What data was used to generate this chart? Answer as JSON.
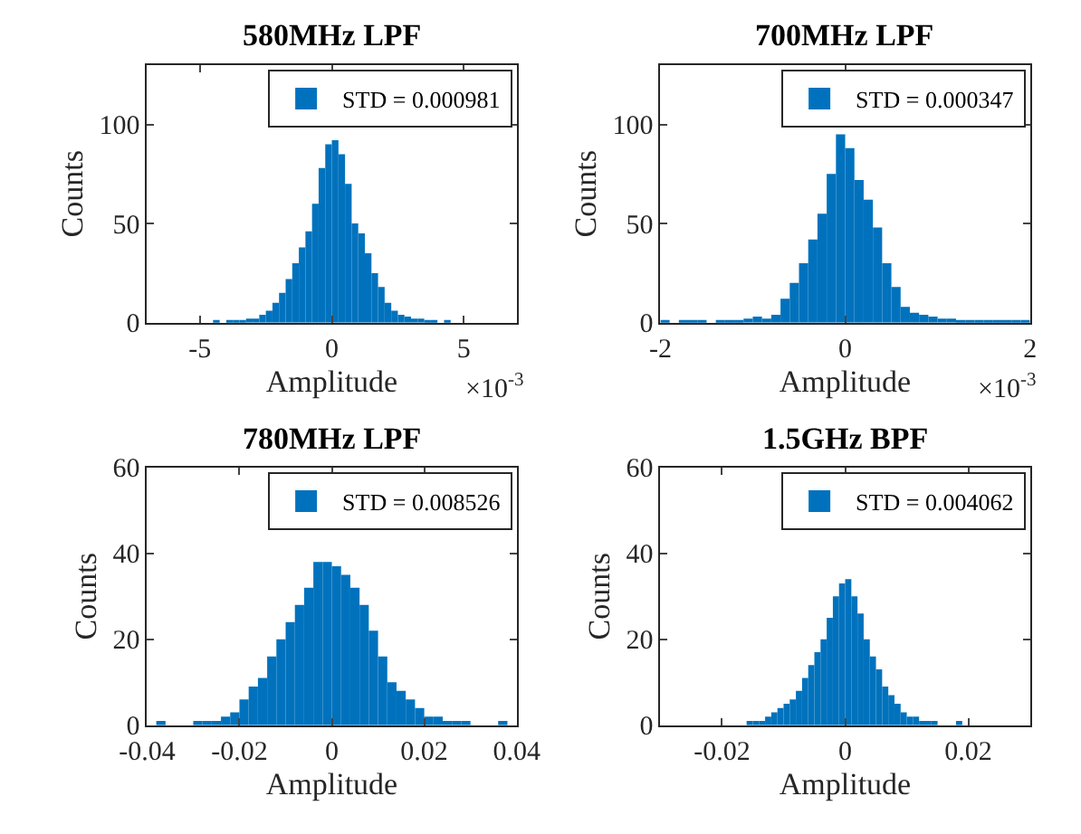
{
  "chart_data": [
    {
      "type": "histogram",
      "title": "580MHz LPF",
      "xlabel": "Amplitude",
      "ylabel": "Counts",
      "legend": "top right",
      "series": [
        {
          "name": "STD = 0.000981",
          "color": "#0072bd",
          "values": [
            1,
            0,
            1,
            1,
            1,
            2,
            2,
            4,
            6,
            10,
            15,
            22,
            30,
            38,
            46,
            60,
            78,
            90,
            92,
            85,
            70,
            50,
            45,
            35,
            25,
            18,
            10,
            6,
            4,
            3,
            2,
            2,
            1,
            1,
            0,
            1
          ]
        }
      ],
      "bins": [
        -4.5,
        -4.25,
        -4,
        -3.75,
        -3.5,
        -3.25,
        -3,
        -2.75,
        -2.5,
        -2.25,
        -2,
        -1.75,
        -1.5,
        -1.25,
        -1,
        -0.75,
        -0.5,
        -0.25,
        0,
        0.25,
        0.5,
        0.75,
        1,
        1.25,
        1.5,
        1.75,
        2,
        2.25,
        2.5,
        2.75,
        3,
        3.25,
        3.5,
        3.75,
        4,
        4.25,
        4.5
      ],
      "xlim": [
        -7,
        7
      ],
      "xticks": [
        -5,
        0,
        5
      ],
      "ylim": [
        0,
        130
      ],
      "yticks": [
        0,
        50,
        100
      ],
      "annotations": [
        "×10$^{-3}$"
      ]
    },
    {
      "type": "histogram",
      "title": "700MHz LPF",
      "xlabel": "Amplitude",
      "ylabel": "Counts",
      "legend": "top right",
      "series": [
        {
          "name": "STD = 0.000347",
          "color": "#0072bd",
          "values": [
            1,
            0,
            1,
            1,
            1,
            0,
            1,
            1,
            1,
            2,
            3,
            2,
            4,
            12,
            20,
            30,
            42,
            55,
            75,
            95,
            88,
            72,
            62,
            48,
            30,
            18,
            8,
            5,
            4,
            3,
            2,
            2,
            1,
            1,
            1,
            1,
            1,
            1,
            1,
            1
          ]
        }
      ],
      "bins": [
        -2,
        -1.9,
        -1.8,
        -1.7,
        -1.6,
        -1.5,
        -1.4,
        -1.3,
        -1.2,
        -1.1,
        -1,
        -0.9,
        -0.8,
        -0.7,
        -0.6,
        -0.5,
        -0.4,
        -0.3,
        -0.2,
        -0.1,
        0,
        0.1,
        0.2,
        0.3,
        0.4,
        0.5,
        0.6,
        0.7,
        0.8,
        0.9,
        1,
        1.1,
        1.2,
        1.3,
        1.4,
        1.5,
        1.6,
        1.7,
        1.8,
        1.9,
        2
      ],
      "xlim": [
        -2,
        2
      ],
      "xticks": [
        -2,
        0,
        2
      ],
      "ylim": [
        0,
        130
      ],
      "yticks": [
        0,
        50,
        100
      ],
      "annotations": [
        "×10$^{-3}$"
      ]
    },
    {
      "type": "histogram",
      "title": "780MHz LPF",
      "xlabel": "Amplitude",
      "ylabel": "Counts",
      "legend": "top right",
      "series": [
        {
          "name": "STD = 0.008526",
          "color": "#0072bd",
          "values": [
            0,
            1,
            0,
            0,
            0,
            1,
            1,
            1,
            2,
            3,
            6,
            9,
            11,
            16,
            20,
            24,
            28,
            32,
            38,
            38,
            37,
            35,
            32,
            28,
            22,
            16,
            10,
            8,
            6,
            4,
            2,
            2,
            1,
            1,
            1,
            0,
            0,
            0,
            1,
            0
          ]
        }
      ],
      "bins": [
        -0.04,
        -0.038,
        -0.036,
        -0.034,
        -0.032,
        -0.03,
        -0.028,
        -0.026,
        -0.024,
        -0.022,
        -0.02,
        -0.018,
        -0.016,
        -0.014,
        -0.012,
        -0.01,
        -0.008,
        -0.006,
        -0.004,
        -0.002,
        0,
        0.002,
        0.004,
        0.006,
        0.008,
        0.01,
        0.012,
        0.014,
        0.016,
        0.018,
        0.02,
        0.022,
        0.024,
        0.026,
        0.028,
        0.03,
        0.032,
        0.034,
        0.036,
        0.038,
        0.04
      ],
      "xlim": [
        -0.04,
        0.04
      ],
      "xticks": [
        -0.04,
        -0.02,
        0,
        0.02,
        0.04
      ],
      "ylim": [
        0,
        60
      ],
      "yticks": [
        0,
        20,
        40,
        60
      ]
    },
    {
      "type": "histogram",
      "title": "1.5GHz BPF",
      "xlabel": "Amplitude",
      "ylabel": "Counts",
      "legend": "top right",
      "series": [
        {
          "name": "STD = 0.004062",
          "color": "#0072bd",
          "values": [
            0,
            0,
            0,
            0,
            1,
            1,
            1,
            2,
            3,
            4,
            5,
            6,
            8,
            11,
            14,
            17,
            20,
            25,
            30,
            33,
            34,
            30,
            26,
            20,
            16,
            13,
            9,
            7,
            5,
            3,
            2,
            2,
            1,
            1,
            1,
            0,
            0,
            0,
            1,
            0
          ]
        }
      ],
      "bins": [
        -0.02,
        -0.019,
        -0.018,
        -0.017,
        -0.016,
        -0.015,
        -0.014,
        -0.013,
        -0.012,
        -0.011,
        -0.01,
        -0.009,
        -0.008,
        -0.007,
        -0.006,
        -0.005,
        -0.004,
        -0.003,
        -0.002,
        -0.001,
        0,
        0.001,
        0.002,
        0.003,
        0.004,
        0.005,
        0.006,
        0.007,
        0.008,
        0.009,
        0.01,
        0.011,
        0.012,
        0.013,
        0.014,
        0.015,
        0.016,
        0.017,
        0.018,
        0.019,
        0.02
      ],
      "xlim": [
        -0.03,
        0.03
      ],
      "xticks": [
        -0.02,
        0,
        0.02
      ],
      "ylim": [
        0,
        60
      ],
      "yticks": [
        0,
        20,
        40,
        60
      ]
    }
  ]
}
